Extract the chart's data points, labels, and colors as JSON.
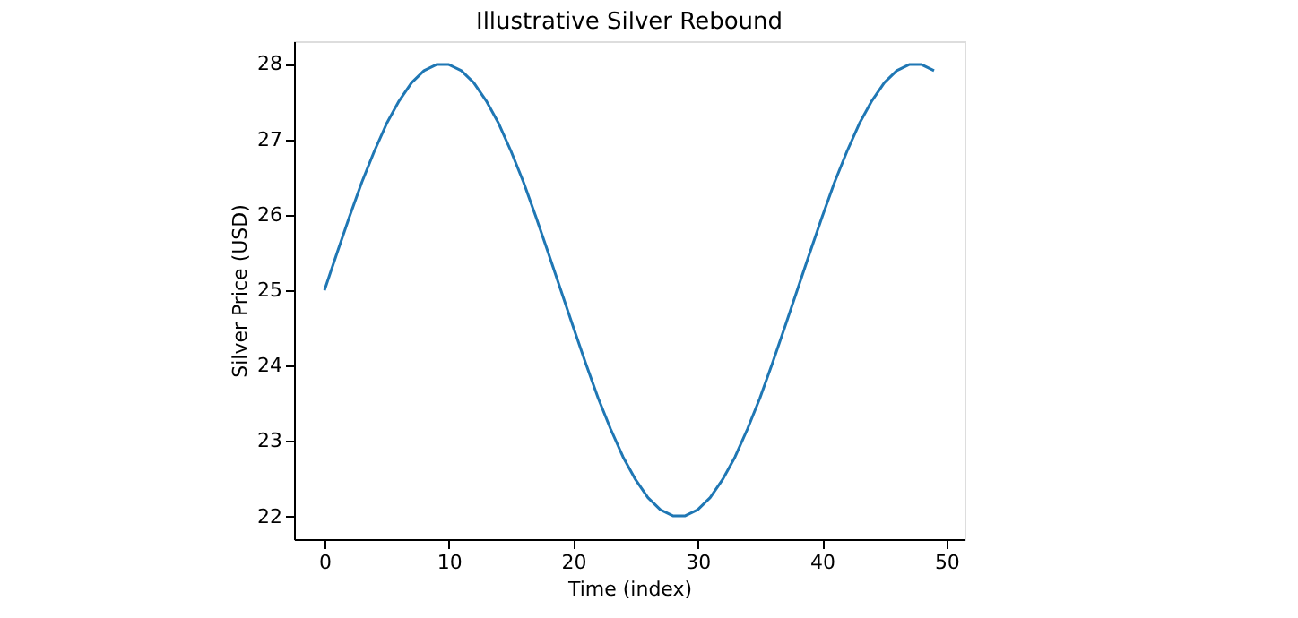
{
  "chart_data": {
    "type": "line",
    "title": "Illustrative Silver Rebound",
    "xlabel": "Time (index)",
    "ylabel": "Silver Price (USD)",
    "x": [
      0,
      1,
      2,
      3,
      4,
      5,
      6,
      7,
      8,
      9,
      10,
      11,
      12,
      13,
      14,
      15,
      16,
      17,
      18,
      19,
      20,
      21,
      22,
      23,
      24,
      25,
      26,
      27,
      28,
      29,
      30,
      31,
      32,
      33,
      34,
      35,
      36,
      37,
      38,
      39,
      40,
      41,
      42,
      43,
      44,
      45,
      46,
      47,
      48,
      49
    ],
    "series": [
      {
        "color": "#1f77b4",
        "values": [
          25.0,
          25.49,
          25.97,
          26.43,
          26.84,
          27.21,
          27.51,
          27.75,
          27.91,
          27.99,
          27.99,
          27.91,
          27.75,
          27.51,
          27.21,
          26.84,
          26.43,
          25.97,
          25.49,
          25.0,
          24.51,
          24.03,
          23.57,
          23.16,
          22.79,
          22.49,
          22.25,
          22.09,
          22.01,
          22.01,
          22.09,
          22.25,
          22.49,
          22.79,
          23.16,
          23.57,
          24.03,
          24.51,
          25.0,
          25.49,
          25.97,
          26.43,
          26.84,
          27.21,
          27.51,
          27.75,
          27.91,
          27.99,
          27.99,
          27.91
        ]
      }
    ],
    "xlim": [
      -2.45,
      51.45
    ],
    "ylim": [
      21.7,
      28.3
    ],
    "xticks": [
      0,
      10,
      20,
      30,
      40,
      50
    ],
    "yticks": [
      22,
      23,
      24,
      25,
      26,
      27,
      28
    ],
    "grid": false,
    "legend": false,
    "marker": "none",
    "line_style": "solid"
  }
}
